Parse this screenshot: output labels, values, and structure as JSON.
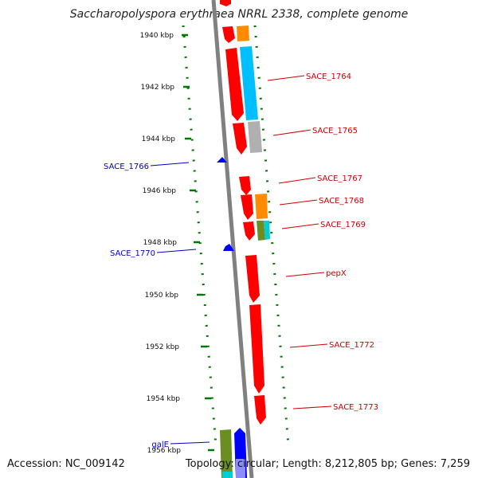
{
  "title": "Saccharopolyspora erythraea NRRL 2338, complete genome",
  "accession_text": "Accession: NC_009142",
  "summary_text": "Topology: circular; Length: 8,212,805 bp; Genes: 7,259",
  "ticks": [
    "1940 kbp",
    "1942 kbp",
    "1944 kbp",
    "1946 kbp",
    "1948 kbp",
    "1950 kbp",
    "1952 kbp",
    "1954 kbp",
    "1956 kbp"
  ],
  "gene_labels_right": [
    "SACE_1764",
    "SACE_1765",
    "SACE_1767",
    "SACE_1768",
    "SACE_1769",
    "pepX",
    "SACE_1772",
    "SACE_1773"
  ],
  "gene_labels_left": [
    "SACE_1766",
    "SACE_1770",
    "galE"
  ],
  "colors": {
    "red": "#ff0000",
    "orange": "#ff8c00",
    "cyan": "#00bfff",
    "grey": "#b0b0b0",
    "olive": "#6b8e23",
    "teal": "#00ced1",
    "blue": "#0000ff",
    "green_tick": "#007700",
    "backbone": "#808080",
    "label_red": "#cc0000",
    "label_blue": "#0000cc"
  }
}
